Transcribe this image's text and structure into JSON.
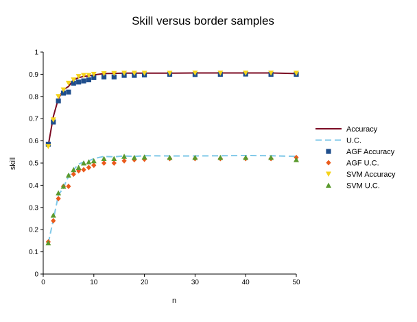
{
  "chart_data": {
    "type": "scatter",
    "title": "Skill versus border samples",
    "xlabel": "n",
    "ylabel": "skill",
    "xlim": [
      0,
      50
    ],
    "ylim": [
      0,
      1
    ],
    "x_ticks": [
      0,
      10,
      20,
      30,
      40,
      50
    ],
    "x_tick_labels": [
      "0",
      "10",
      "20",
      "30",
      "40",
      "50"
    ],
    "y_ticks": [
      0,
      0.1,
      0.2,
      0.3,
      0.4,
      0.5,
      0.6,
      0.7,
      0.8,
      0.9,
      1
    ],
    "y_tick_labels": [
      "0",
      "0.1",
      "0.2",
      "0.3",
      "0.4",
      "0.5",
      "0.6",
      "0.7",
      "0.8",
      "0.9",
      "1"
    ],
    "grid": false,
    "legend_position": "right",
    "series": [
      {
        "name": "Accuracy",
        "kind": "line",
        "style": "solid",
        "color": "#7b0a22",
        "x": [
          1,
          2,
          3,
          4,
          5,
          6,
          7,
          8,
          9,
          10,
          12,
          14,
          16,
          18,
          20,
          25,
          30,
          35,
          40,
          45,
          50
        ],
        "y": [
          0.58,
          0.71,
          0.79,
          0.83,
          0.845,
          0.875,
          0.885,
          0.89,
          0.893,
          0.897,
          0.903,
          0.904,
          0.905,
          0.905,
          0.905,
          0.905,
          0.906,
          0.906,
          0.906,
          0.906,
          0.903
        ]
      },
      {
        "name": "U.C.",
        "kind": "line",
        "style": "dashed",
        "color": "#7fc8e8",
        "x": [
          1,
          2,
          3,
          4,
          5,
          6,
          7,
          8,
          9,
          10,
          12,
          14,
          16,
          18,
          20,
          25,
          30,
          35,
          40,
          45,
          50
        ],
        "y": [
          0.14,
          0.245,
          0.355,
          0.39,
          0.44,
          0.47,
          0.495,
          0.505,
          0.51,
          0.52,
          0.53,
          0.528,
          0.532,
          0.53,
          0.533,
          0.532,
          0.532,
          0.533,
          0.534,
          0.533,
          0.53
        ]
      },
      {
        "name": "AGF Accuracy",
        "kind": "marker",
        "marker": "square",
        "color": "#1f4e8c",
        "x": [
          1,
          2,
          3,
          4,
          5,
          6,
          7,
          8,
          9,
          10,
          12,
          14,
          16,
          18,
          20,
          25,
          30,
          35,
          40,
          45,
          50
        ],
        "y": [
          0.585,
          0.685,
          0.78,
          0.815,
          0.82,
          0.86,
          0.865,
          0.87,
          0.875,
          0.885,
          0.888,
          0.888,
          0.895,
          0.895,
          0.897,
          0.9,
          0.899,
          0.9,
          0.901,
          0.9,
          0.9
        ]
      },
      {
        "name": "AGF U.C.",
        "kind": "marker",
        "marker": "diamond",
        "color": "#ea5a1b",
        "x": [
          1,
          2,
          3,
          4,
          5,
          6,
          7,
          8,
          9,
          10,
          12,
          14,
          16,
          18,
          20,
          25,
          30,
          35,
          40,
          45,
          50
        ],
        "y": [
          0.145,
          0.24,
          0.34,
          0.395,
          0.395,
          0.45,
          0.465,
          0.47,
          0.48,
          0.49,
          0.5,
          0.5,
          0.51,
          0.515,
          0.517,
          0.52,
          0.52,
          0.52,
          0.52,
          0.52,
          0.525
        ]
      },
      {
        "name": "SVM Accuracy",
        "kind": "marker",
        "marker": "triangle-down",
        "color": "#f5d31b",
        "x": [
          1,
          2,
          3,
          4,
          5,
          6,
          7,
          8,
          9,
          10,
          12,
          14,
          16,
          18,
          20,
          25,
          30,
          35,
          40,
          45,
          50
        ],
        "y": [
          0.575,
          0.695,
          0.8,
          0.83,
          0.86,
          0.875,
          0.89,
          0.895,
          0.895,
          0.9,
          0.903,
          0.904,
          0.905,
          0.905,
          0.905,
          0.905,
          0.906,
          0.906,
          0.906,
          0.906,
          0.905
        ]
      },
      {
        "name": "SVM U.C.",
        "kind": "marker",
        "marker": "triangle-up",
        "color": "#5a9a2e",
        "x": [
          1,
          2,
          3,
          4,
          5,
          6,
          7,
          8,
          9,
          10,
          12,
          14,
          16,
          18,
          20,
          25,
          30,
          35,
          40,
          45,
          50
        ],
        "y": [
          0.14,
          0.265,
          0.365,
          0.395,
          0.445,
          0.47,
          0.48,
          0.5,
          0.505,
          0.51,
          0.52,
          0.52,
          0.53,
          0.525,
          0.527,
          0.525,
          0.525,
          0.525,
          0.525,
          0.525,
          0.515
        ]
      }
    ]
  }
}
